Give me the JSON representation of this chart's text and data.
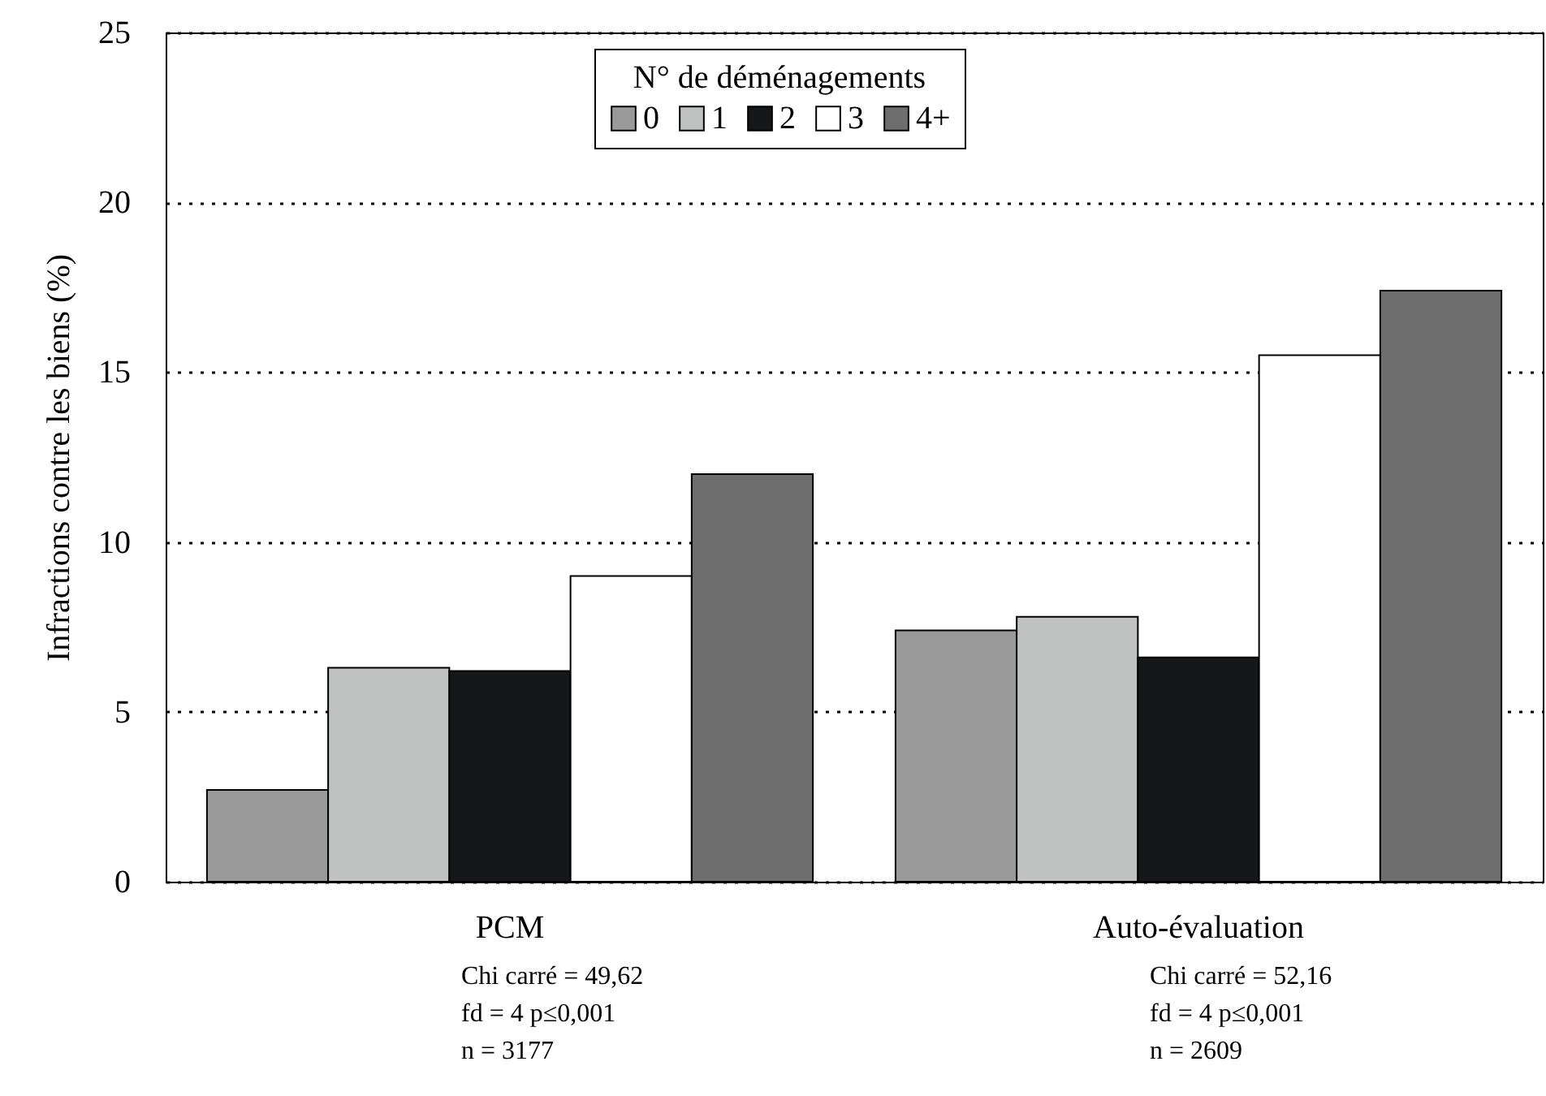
{
  "chart_data": {
    "type": "bar",
    "ylabel": "Infractions contre les biens (%)",
    "legend_title": "N° de déménagements",
    "categories": [
      "PCM",
      "Auto-évaluation"
    ],
    "series": [
      {
        "name": "0",
        "color": "#9a9a9a",
        "values": [
          2.7,
          7.4
        ]
      },
      {
        "name": "1",
        "color": "#c0c2c2",
        "values": [
          6.3,
          7.8
        ]
      },
      {
        "name": "2",
        "color": "#161719",
        "values": [
          6.2,
          6.6
        ]
      },
      {
        "name": "3",
        "color": "#ffffff",
        "values": [
          9.0,
          15.5
        ]
      },
      {
        "name": "4+",
        "color": "#6e6e6e",
        "values": [
          12.0,
          17.4
        ]
      }
    ],
    "ylim": [
      0,
      25
    ],
    "yticks": [
      0,
      5,
      10,
      15,
      20,
      25
    ],
    "grid": "y",
    "legend": "top",
    "annotations": [
      "Chi carré = 49,62\nfd = 4 p≤0,001\nn = 3177",
      "Chi carré = 52,16\nfd = 4 p≤0,001\nn = 2609"
    ]
  }
}
